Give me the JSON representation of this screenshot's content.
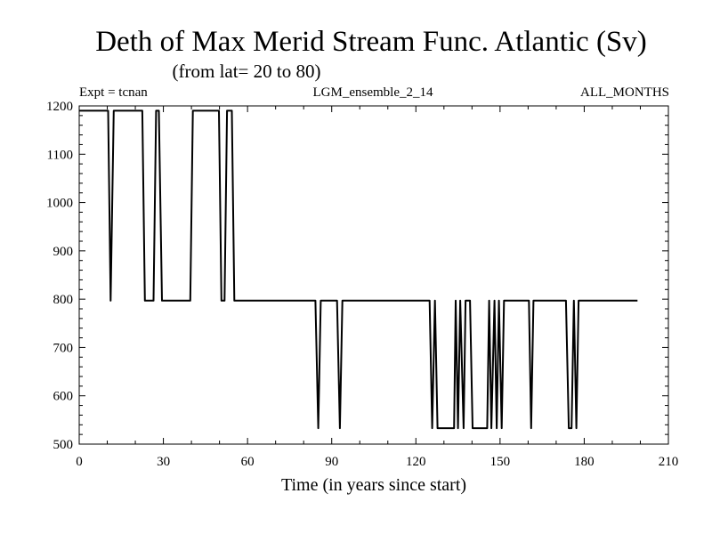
{
  "chart_data": {
    "type": "line",
    "title": "Deth of Max Merid Stream Func. Atlantic (Sv)",
    "subtitle": "(from lat= 20 to 80)",
    "header_left": "Expt = tcnan",
    "header_center": "LGM_ensemble_2_14",
    "header_right": "ALL_MONTHS",
    "xlabel": "Time (in years since start)",
    "ylabel": "",
    "xlim": [
      0,
      210
    ],
    "ylim": [
      500,
      1200
    ],
    "xticks": [
      0,
      30,
      60,
      90,
      120,
      150,
      180,
      210
    ],
    "yticks": [
      500,
      600,
      700,
      800,
      900,
      1000,
      1100,
      1200
    ],
    "grid": false,
    "series": [
      {
        "x": [
          0,
          10.3,
          11.2,
          12.3,
          22.5,
          23.4,
          26.5,
          27.4,
          28.4,
          29.5,
          39.6,
          40.5,
          49.8,
          50.7,
          51.8,
          52.7,
          54.4,
          55.3,
          84.2,
          85.2,
          86.1,
          91.9,
          92.9,
          93.8,
          124.9,
          125.8,
          126.8,
          127.7,
          128.5,
          133.6,
          134.2,
          135.0,
          135.8,
          137.0,
          137.7,
          139.3,
          140.2,
          141.0,
          145.4,
          146.1,
          146.9,
          148.0,
          148.8,
          149.6,
          150.6,
          151.4,
          160.3,
          161.1,
          161.9,
          173.5,
          174.5,
          175.5,
          176.3,
          177.2,
          178.0,
          199.0
        ],
        "y": [
          1190,
          1190,
          797,
          1190,
          1190,
          797,
          797,
          1190,
          1190,
          797,
          797,
          1190,
          1190,
          797,
          797,
          1190,
          1190,
          797,
          797,
          533,
          797,
          797,
          533,
          797,
          797,
          533,
          797,
          533,
          533,
          533,
          797,
          533,
          797,
          533,
          797,
          797,
          533,
          533,
          533,
          797,
          533,
          797,
          533,
          797,
          533,
          797,
          797,
          533,
          797,
          797,
          533,
          533,
          797,
          533,
          797,
          797
        ]
      }
    ]
  }
}
